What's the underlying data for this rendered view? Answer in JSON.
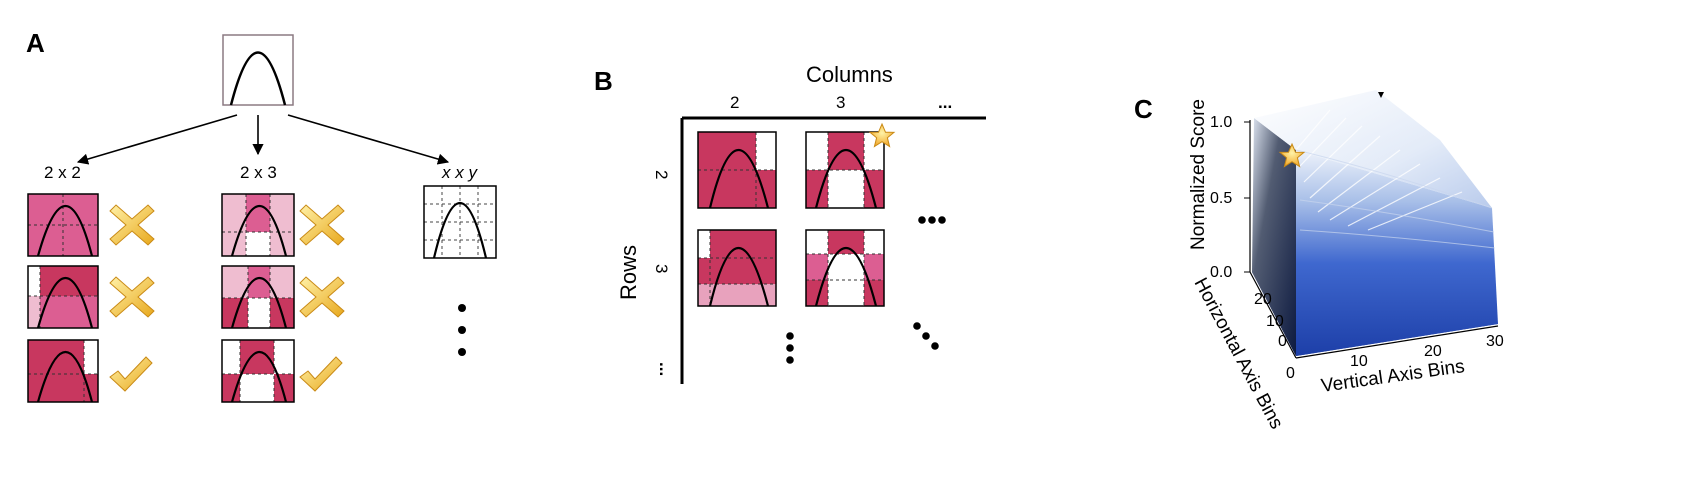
{
  "panels": {
    "a": {
      "letter": "A",
      "captions": [
        "2 x 2",
        "2 x 3",
        "x x y"
      ]
    },
    "b": {
      "letter": "B",
      "columns_title": "Columns",
      "rows_title": "Rows",
      "col_labels": [
        "2",
        "3",
        "..."
      ],
      "row_labels": [
        "2",
        "3",
        "..."
      ]
    },
    "c": {
      "letter": "C",
      "z_label": "Normalized Score",
      "x_label": "Vertical Axis Bins",
      "y_label": "Horizontal Axis Bins",
      "z_ticks": [
        "1.0",
        "0.5",
        "0.0"
      ],
      "x_ticks": [
        "0",
        "10",
        "20",
        "30"
      ],
      "y_ticks": [
        "20",
        "10",
        "0"
      ]
    }
  },
  "colors": {
    "dark_pink": "#c8375f",
    "mid_pink": "#dc5e92",
    "light_pink": "#e8a2bd",
    "very_light_pink": "#efbdd0",
    "cross_gold": "#f2c230",
    "star_gold": "#f6c445",
    "surface_blue": "#2b55c4",
    "surface_dark": "#1a2238"
  },
  "icons": [
    "cross-icon",
    "check-icon",
    "star-icon",
    "ellipsis-dots"
  ]
}
